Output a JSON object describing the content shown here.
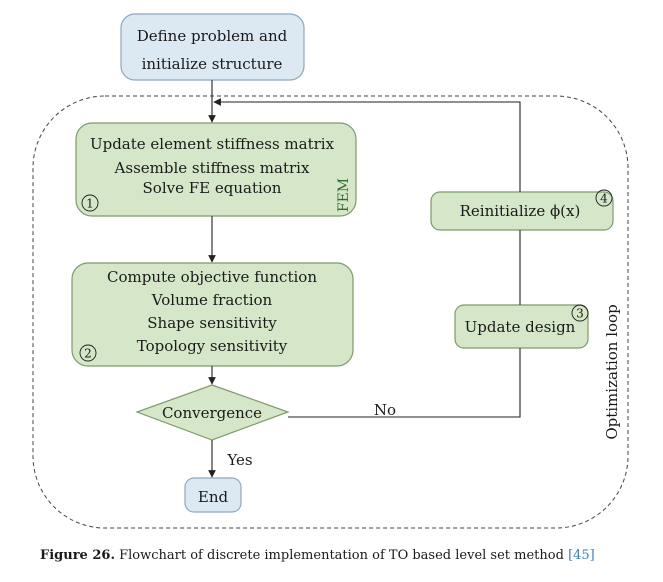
{
  "diagram": {
    "nodes": {
      "define": [
        "Define problem and",
        "initialize structure"
      ],
      "fe": [
        "Update element stiffness matrix",
        "Assemble stiffness matrix",
        "Solve FE equation"
      ],
      "fe_badge": "1",
      "fem_label": "FEM",
      "compute": [
        "Compute objective function",
        "Volume fraction",
        "Shape sensitivity",
        "Topology sensitivity"
      ],
      "compute_badge": "2",
      "convergence": "Convergence",
      "update_design": "Update design",
      "update_badge": "3",
      "reinit": "Reinitialize ϕ(x)",
      "reinit_badge": "4",
      "end": "End"
    },
    "edges": {
      "no": "No",
      "yes": "Yes"
    },
    "loop_label": "Optimization loop"
  },
  "caption": {
    "label": "Figure 26.",
    "text": "Flowchart of discrete implementation of TO based level set method",
    "ref": "[45]"
  },
  "colors": {
    "blue_fill": "#dce8f2",
    "blue_stroke": "#8ea8be",
    "green_fill": "#d5e7c8",
    "green_stroke": "#7e9a6c",
    "fem_text": "#2f6b2f",
    "line": "#222222"
  }
}
